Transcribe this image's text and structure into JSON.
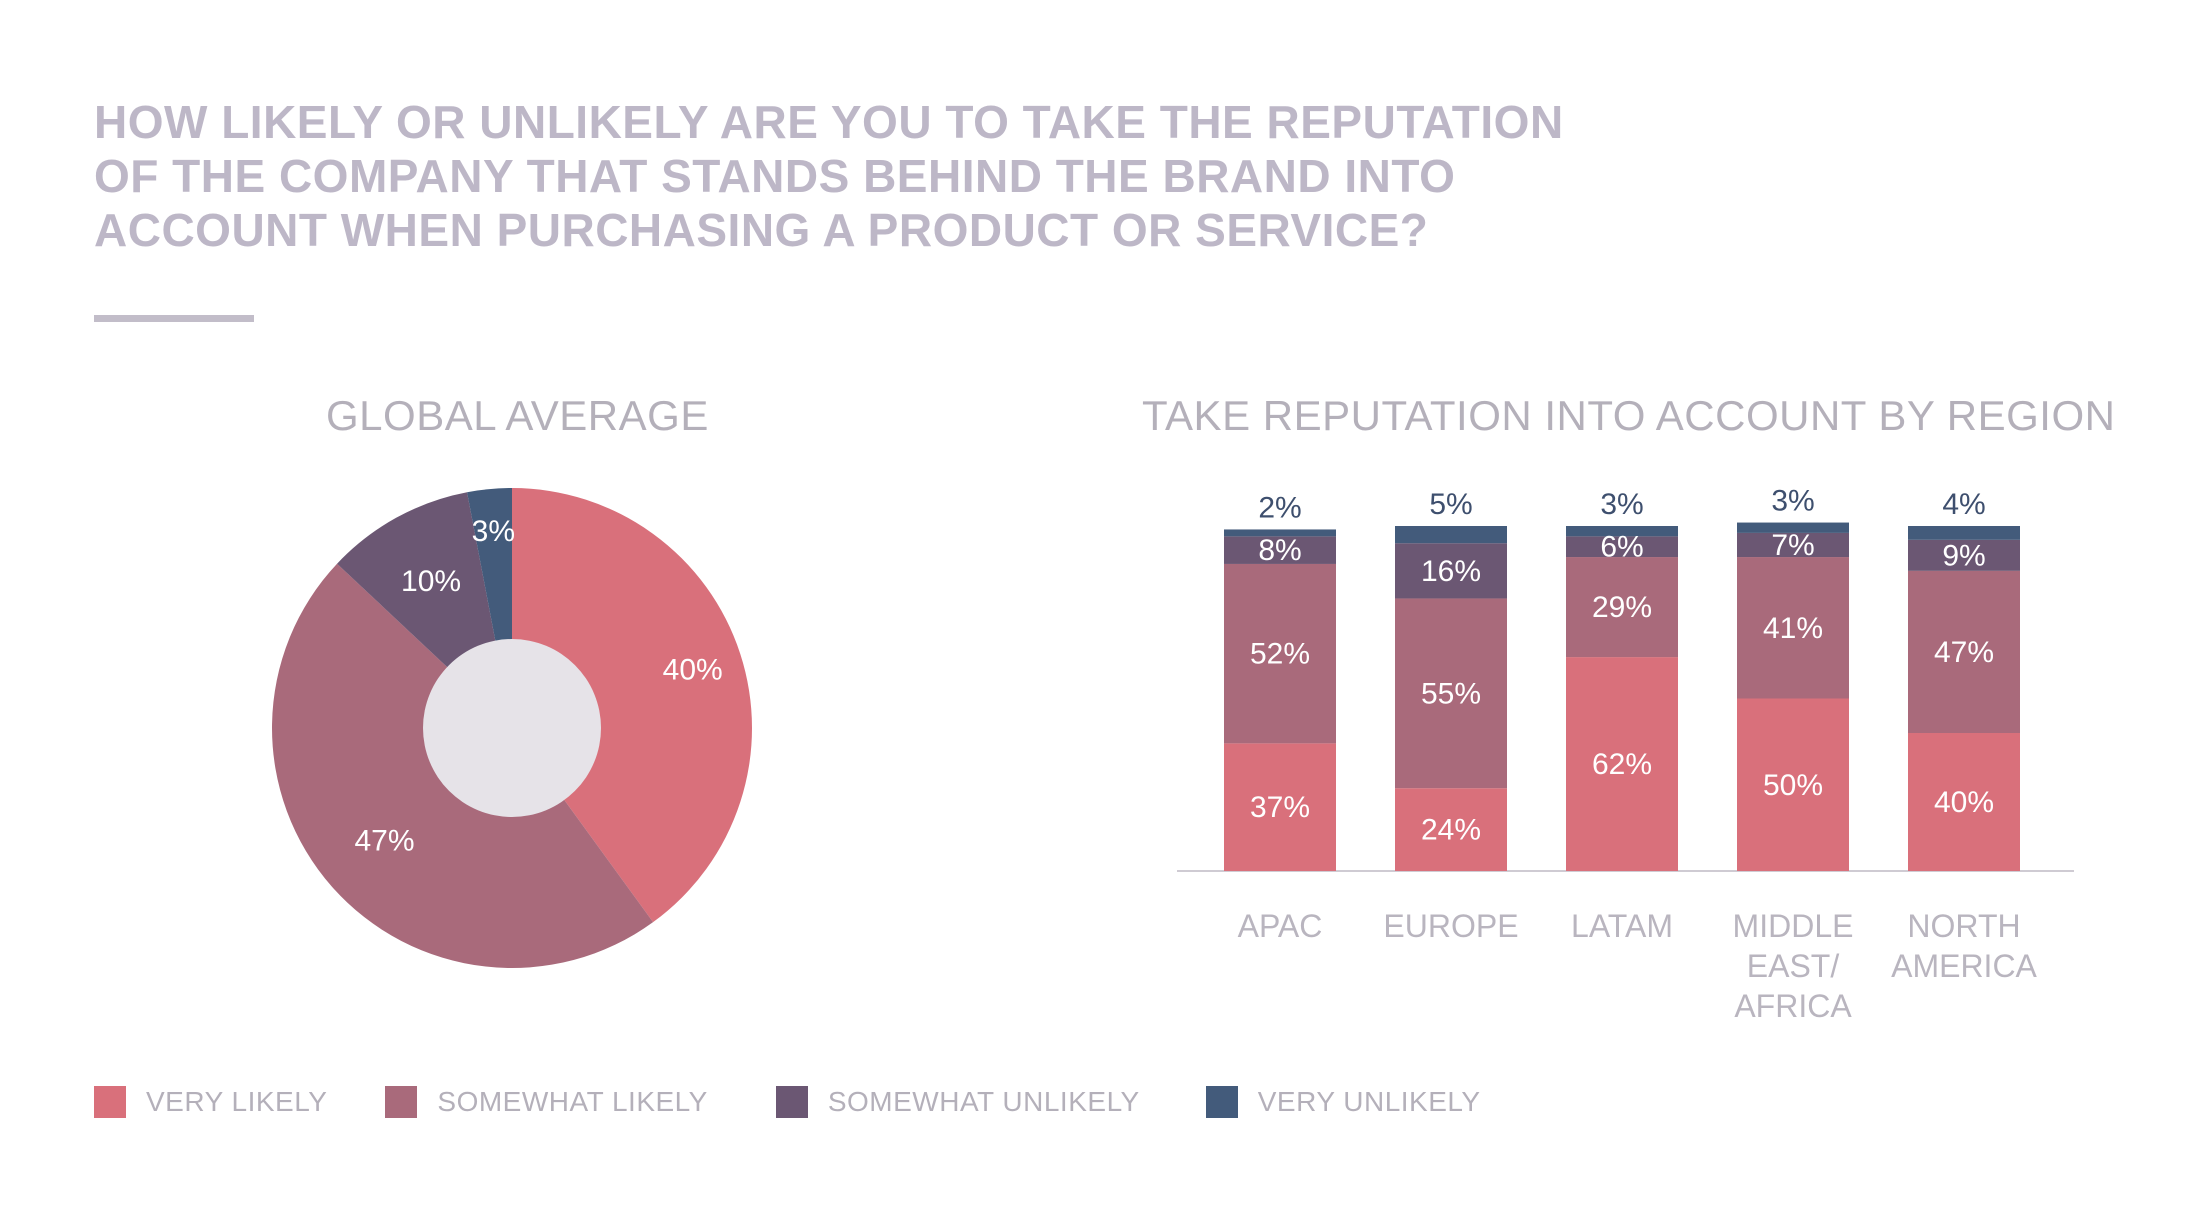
{
  "title": "HOW LIKELY OR UNLIKELY ARE YOU TO TAKE THE REPUTATION\nOF THE COMPANY THAT STANDS BEHIND THE BRAND INTO\nACCOUNT WHEN PURCHASING A PRODUCT OR SERVICE?",
  "legend": [
    {
      "label": "VERY LIKELY",
      "color": "#d9707b"
    },
    {
      "label": "SOMEWHAT LIKELY",
      "color": "#a96a7b"
    },
    {
      "label": "SOMEWHAT UNLIKELY",
      "color": "#6b5773"
    },
    {
      "label": "VERY UNLIKELY",
      "color": "#435b7b"
    }
  ],
  "chart_data": [
    {
      "type": "pie",
      "title": "GLOBAL AVERAGE",
      "categories": [
        "VERY LIKELY",
        "SOMEWHAT LIKELY",
        "SOMEWHAT UNLIKELY",
        "VERY UNLIKELY"
      ],
      "values": [
        40,
        47,
        10,
        3
      ],
      "labels": [
        "40%",
        "47%",
        "10%",
        "3%"
      ],
      "colors": [
        "#d9707b",
        "#a96a7b",
        "#6b5773",
        "#435b7b"
      ],
      "donut": true
    },
    {
      "type": "bar",
      "stacked": true,
      "title": "TAKE REPUTATION INTO ACCOUNT BY REGION",
      "categories": [
        [
          "APAC"
        ],
        [
          "EUROPE"
        ],
        [
          "LATAM"
        ],
        [
          "MIDDLE",
          "EAST/",
          "AFRICA"
        ],
        [
          "NORTH",
          "AMERICA"
        ]
      ],
      "series": [
        {
          "name": "VERY LIKELY",
          "color": "#d9707b",
          "values": [
            37,
            24,
            62,
            50,
            40
          ],
          "labels": [
            "37%",
            "24%",
            "62%",
            "50%",
            "40%"
          ]
        },
        {
          "name": "SOMEWHAT LIKELY",
          "color": "#a96a7b",
          "values": [
            52,
            55,
            29,
            41,
            47
          ],
          "labels": [
            "52%",
            "55%",
            "29%",
            "41%",
            "47%"
          ]
        },
        {
          "name": "SOMEWHAT UNLIKELY",
          "color": "#6b5773",
          "values": [
            8,
            16,
            6,
            7,
            9
          ],
          "labels": [
            "8%",
            "16%",
            "6%",
            "7%",
            "9%"
          ]
        },
        {
          "name": "VERY UNLIKELY",
          "color": "#435b7b",
          "values": [
            2,
            5,
            3,
            3,
            4
          ],
          "labels": [
            "2%",
            "5%",
            "3%",
            "3%",
            "4%"
          ]
        }
      ],
      "ylim": [
        0,
        100
      ],
      "grid": false,
      "legend_position": "bottom"
    }
  ]
}
